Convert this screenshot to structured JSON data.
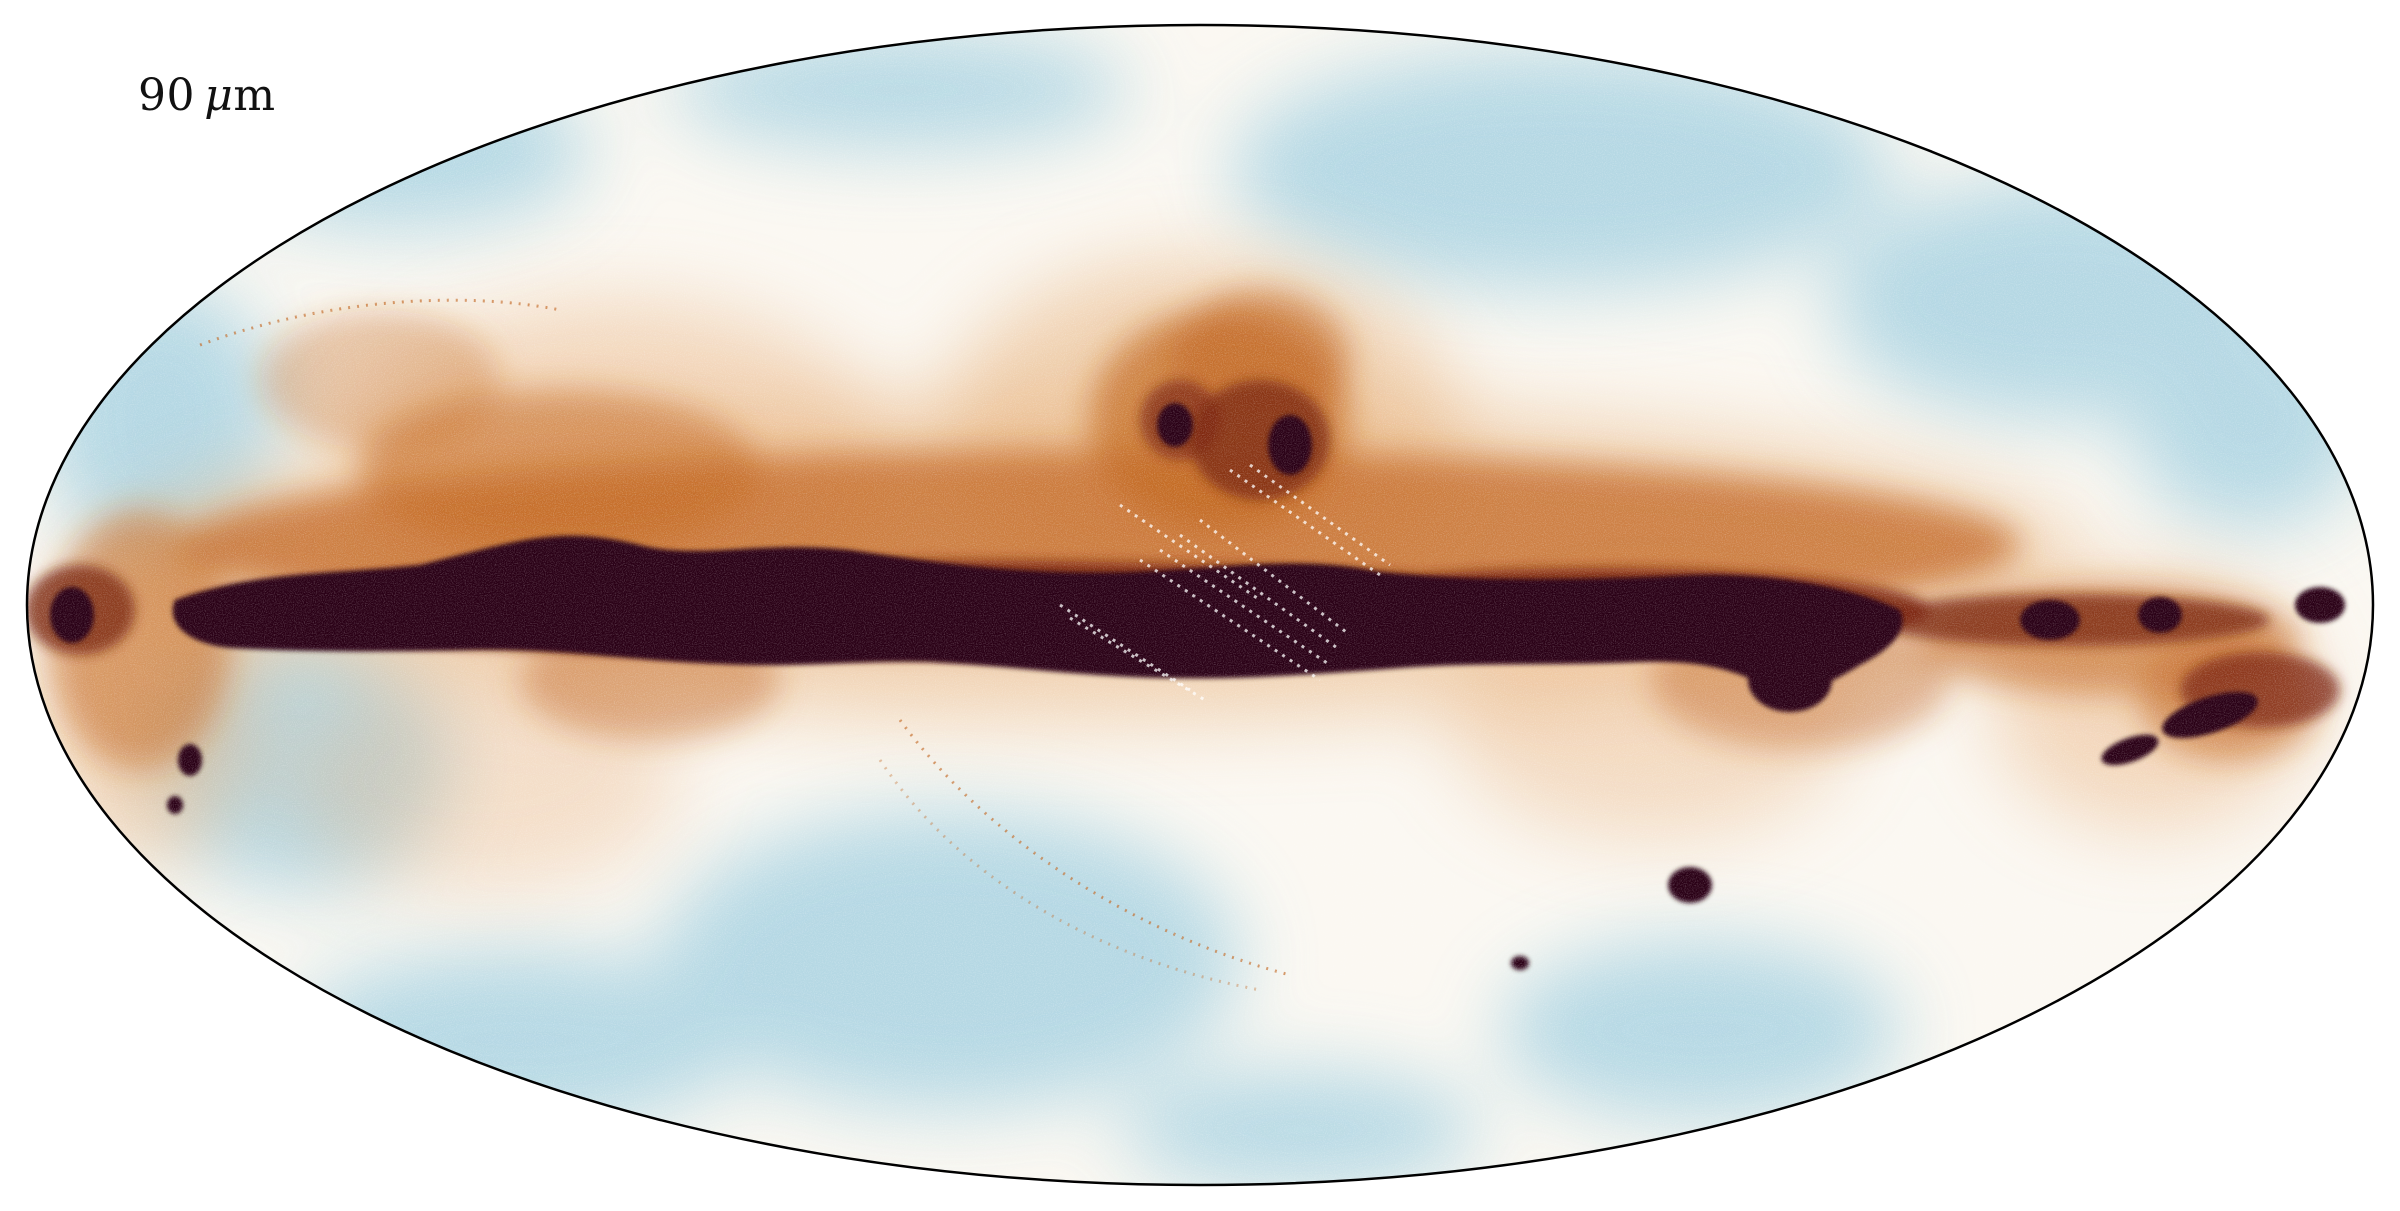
{
  "figure": {
    "projection": "mollweide",
    "label": {
      "number": "90",
      "unit_symbol": "μ",
      "unit_suffix": "m"
    },
    "colors": {
      "background": "#ffffff",
      "outline": "#000000",
      "low": "#a9d3e2",
      "mid": "#fbf8f2",
      "high1": "#e8b07a",
      "high2": "#c26620",
      "high3": "#7a2410",
      "peak": "#2a0314"
    }
  }
}
